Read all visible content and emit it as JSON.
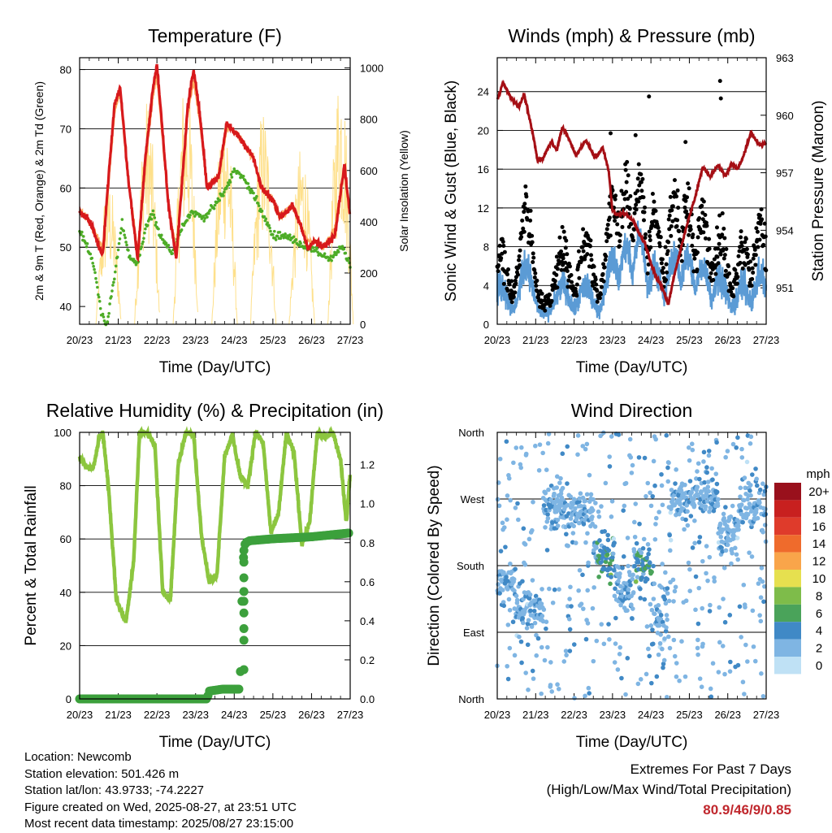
{
  "footer": {
    "location": "Location: Newcomb",
    "elevation": "Station elevation: 501.426 m",
    "latlon": "Station lat/lon: 43.9733; -74.2227",
    "created": "Figure created on Wed, 2025-08-27, at 23:51 UTC",
    "recent": "Most recent data timestamp: 2025/08/27 23:15:00"
  },
  "extremes": {
    "title": "Extremes For Past 7 Days",
    "subtitle": "(High/Low/Max Wind/Total Precipitation)",
    "values": "80.9/46/9/0.85"
  },
  "chart_data": [
    {
      "id": "temperature",
      "type": "line",
      "title": "Temperature (F)",
      "xlabel": "Time (Day/UTC)",
      "ylabel": "2m & 9m T (Red, Orange) & 2m Td (Green)",
      "y2label": "Solar Insolation (Yellow)",
      "x_ticks": [
        "20/23",
        "21/23",
        "22/23",
        "23/23",
        "24/23",
        "25/23",
        "26/23",
        "27/23"
      ],
      "xlim": [
        0,
        7
      ],
      "ylim": [
        37,
        82
      ],
      "y_ticks": [
        40,
        50,
        60,
        70,
        80
      ],
      "y2lim": [
        0,
        1040
      ],
      "y2_ticks": [
        0,
        200,
        400,
        600,
        800,
        1000
      ],
      "grid": true,
      "series": [
        {
          "key": "t2m",
          "color": "#d7191c",
          "axis": "left",
          "x": [
            0,
            0.2,
            0.35,
            0.5,
            0.6,
            0.75,
            0.9,
            1.05,
            1.25,
            1.5,
            1.7,
            1.9,
            2.0,
            2.1,
            2.3,
            2.5,
            2.8,
            2.95,
            3.1,
            3.3,
            3.6,
            3.8,
            3.95,
            4.2,
            4.5,
            4.7,
            5.0,
            5.2,
            5.5,
            5.7,
            5.9,
            6.1,
            6.3,
            6.6,
            6.85,
            7.0
          ],
          "y": [
            56,
            55,
            53,
            50,
            49,
            62,
            74,
            77,
            62,
            48,
            65,
            77,
            81,
            73,
            57,
            48,
            74,
            80,
            73,
            60,
            62,
            71,
            70,
            68,
            65,
            60,
            58,
            55,
            57,
            54,
            50,
            51,
            50,
            52,
            64,
            55
          ]
        },
        {
          "key": "t9m",
          "color": "#fdae61",
          "axis": "left",
          "x": [
            0,
            0.2,
            0.35,
            0.5,
            0.6,
            0.75,
            0.9,
            1.05,
            1.25,
            1.5,
            1.7,
            1.9,
            2.0,
            2.1,
            2.3,
            2.5,
            2.8,
            2.95,
            3.1,
            3.3,
            3.6,
            3.8,
            3.95,
            4.2,
            4.5,
            4.7,
            5.0,
            5.2,
            5.5,
            5.7,
            5.9,
            6.1,
            6.3,
            6.6,
            6.85,
            7.0
          ],
          "y": [
            56,
            55,
            53,
            51,
            50,
            61,
            73,
            76,
            62,
            49,
            64,
            76,
            79,
            72,
            57,
            49,
            73,
            78,
            72,
            60,
            62,
            70,
            70,
            68,
            65,
            60,
            58,
            55,
            57,
            54,
            51,
            51,
            50,
            53,
            63,
            55
          ]
        },
        {
          "key": "td2m",
          "color": "#4dac26",
          "axis": "left",
          "x": [
            0,
            0.2,
            0.4,
            0.55,
            0.7,
            0.9,
            1.1,
            1.3,
            1.5,
            1.7,
            1.9,
            2.0,
            2.2,
            2.4,
            2.6,
            2.9,
            3.2,
            3.5,
            3.8,
            4.0,
            4.2,
            4.5,
            4.7,
            5.0,
            5.3,
            5.6,
            5.9,
            6.2,
            6.5,
            6.8,
            7.0
          ],
          "y": [
            53,
            50,
            46,
            39,
            37,
            45,
            54,
            48,
            47,
            53,
            56,
            53,
            51,
            49,
            53,
            56,
            55,
            57,
            60,
            63,
            62,
            59,
            56,
            52,
            52,
            51,
            50,
            49,
            48,
            50,
            47
          ]
        },
        {
          "key": "solar",
          "color": "#fee08b",
          "axis": "right",
          "peaks_x": [
            0.75,
            1.75,
            2.75,
            3.75,
            4.75,
            5.75,
            6.75
          ],
          "peaks_y": [
            580,
            890,
            1000,
            900,
            860,
            710,
            1030
          ]
        }
      ]
    },
    {
      "id": "winds",
      "type": "scatter",
      "title": "Winds (mph) & Pressure (mb)",
      "xlabel": "Time (Day/UTC)",
      "ylabel": "Sonic Wind & Gust (Blue, Black)",
      "y2label": "Station Pressure (Maroon)",
      "x_ticks": [
        "20/23",
        "21/23",
        "22/23",
        "23/23",
        "24/23",
        "25/23",
        "26/23",
        "27/23"
      ],
      "xlim": [
        0,
        7
      ],
      "ylim": [
        0,
        27.5
      ],
      "y_ticks": [
        0,
        4,
        8,
        12,
        16,
        20,
        24
      ],
      "y2lim": [
        949.1,
        963
      ],
      "y2_ticks": [
        951,
        954,
        957,
        960,
        963
      ],
      "grid": true,
      "pressure": {
        "color": "#a50f15",
        "x": [
          0,
          0.15,
          0.3,
          0.55,
          0.7,
          0.8,
          0.95,
          1.05,
          1.2,
          1.4,
          1.55,
          1.7,
          1.9,
          2.05,
          2.3,
          2.55,
          2.75,
          2.9,
          3.0,
          3.1,
          3.3,
          3.55,
          3.7,
          3.85,
          4.0,
          4.15,
          4.3,
          4.45,
          4.6,
          4.75,
          4.95,
          5.15,
          5.35,
          5.55,
          5.75,
          5.95,
          6.1,
          6.25,
          6.4,
          6.6,
          6.8,
          7.0
        ],
        "y": [
          960.8,
          961.7,
          961.1,
          960.4,
          961.1,
          960.2,
          958.8,
          957.6,
          957.8,
          958.6,
          958.2,
          959.4,
          958.6,
          957.9,
          958.7,
          957.8,
          958.3,
          957.1,
          955.0,
          954.8,
          954.9,
          954.5,
          953.8,
          953.3,
          952.3,
          951.5,
          951.0,
          950.1,
          951.6,
          952.8,
          954.4,
          955.7,
          957.3,
          956.8,
          957.4,
          956.8,
          957.5,
          957.2,
          957.8,
          959.1,
          958.5,
          958.5
        ]
      },
      "wind_bursts": [
        [
          0.1,
          3,
          5
        ],
        [
          0.75,
          5,
          10
        ],
        [
          1.7,
          3,
          6
        ],
        [
          2.3,
          3,
          7
        ],
        [
          3.0,
          6,
          11
        ],
        [
          3.35,
          7,
          12
        ],
        [
          3.7,
          8,
          13
        ],
        [
          4.1,
          5,
          9
        ],
        [
          4.6,
          6,
          11
        ],
        [
          4.95,
          6,
          10
        ],
        [
          5.35,
          5,
          9
        ],
        [
          5.8,
          4,
          7
        ],
        [
          6.4,
          3,
          6
        ],
        [
          6.85,
          4,
          8
        ]
      ],
      "outlier_gusts": [
        [
          3.95,
          23.5
        ],
        [
          5.8,
          25.1
        ],
        [
          5.82,
          23.3
        ],
        [
          4.9,
          18.8
        ],
        [
          3.6,
          19.5
        ],
        [
          2.95,
          19.7
        ]
      ]
    },
    {
      "id": "rh",
      "type": "line",
      "title": "Relative Humidity (%) & Precipitation (in)",
      "xlabel": "Time (Day/UTC)",
      "ylabel": "Percent & Total Rainfall",
      "x_ticks": [
        "20/23",
        "21/23",
        "22/23",
        "23/23",
        "24/23",
        "25/23",
        "26/23",
        "27/23"
      ],
      "xlim": [
        0,
        7
      ],
      "ylim": [
        0,
        100
      ],
      "y_ticks": [
        0,
        20,
        40,
        60,
        80,
        100
      ],
      "y2lim": [
        0,
        1.365
      ],
      "y2_ticks": [
        "0.0",
        "0.2",
        "0.4",
        "0.6",
        "0.8",
        "1.0",
        "1.2"
      ],
      "grid": true,
      "series": [
        {
          "key": "rh",
          "color": "#8cc63f",
          "x": [
            0,
            0.2,
            0.35,
            0.5,
            0.6,
            0.75,
            0.95,
            1.2,
            1.4,
            1.55,
            1.75,
            1.95,
            2.15,
            2.35,
            2.55,
            2.75,
            2.95,
            3.15,
            3.35,
            3.55,
            3.75,
            3.95,
            4.15,
            4.35,
            4.55,
            4.75,
            4.95,
            5.15,
            5.35,
            5.55,
            5.75,
            5.95,
            6.15,
            6.35,
            6.55,
            6.75,
            6.9,
            7.0
          ],
          "y": [
            90,
            87,
            86,
            98,
            100,
            79,
            37,
            29,
            52,
            100,
            100,
            95,
            40,
            37,
            88,
            100,
            99,
            62,
            44,
            46,
            91,
            99,
            84,
            80,
            100,
            96,
            62,
            70,
            100,
            92,
            58,
            66,
            100,
            98,
            100,
            90,
            66,
            85
          ]
        },
        {
          "key": "precip",
          "color": "#3ca03c",
          "axis": "right",
          "x": [
            0,
            3.3,
            3.35,
            3.7,
            4.15,
            4.2,
            4.25,
            4.3,
            4.4,
            5.0,
            6.0,
            7.0
          ],
          "y": [
            0,
            0,
            0.04,
            0.05,
            0.05,
            0.5,
            0.78,
            0.8,
            0.81,
            0.82,
            0.83,
            0.85
          ]
        }
      ]
    },
    {
      "id": "winddir",
      "type": "scatter",
      "title": "Wind Direction",
      "xlabel": "Time (Day/UTC)",
      "ylabel": "Direction (Colored By Speed)",
      "x_ticks": [
        "20/23",
        "21/23",
        "22/23",
        "23/23",
        "24/23",
        "25/23",
        "26/23",
        "27/23"
      ],
      "xlim": [
        0,
        7
      ],
      "y_categories": [
        "North",
        "East",
        "South",
        "West",
        "North"
      ],
      "ylim": [
        0,
        360
      ],
      "grid": true,
      "legend": {
        "title": "mph",
        "labels": [
          "20+",
          "18",
          "16",
          "14",
          "12",
          "10",
          "8",
          "6",
          "4",
          "2",
          "0"
        ],
        "colors": [
          "#99101c",
          "#c8201f",
          "#df3b2b",
          "#ef6b2c",
          "#f9a54a",
          "#e6e04f",
          "#7ebc4a",
          "#4aa35a",
          "#4089c6",
          "#7fb5e3",
          "#bfe1f5"
        ]
      },
      "clusters": [
        [
          0.1,
          160,
          20
        ],
        [
          0.8,
          120,
          30
        ],
        [
          1.6,
          260,
          35
        ],
        [
          2.2,
          255,
          25
        ],
        [
          2.8,
          195,
          25
        ],
        [
          3.3,
          150,
          40
        ],
        [
          3.8,
          180,
          30
        ],
        [
          4.2,
          110,
          60
        ],
        [
          4.8,
          270,
          30
        ],
        [
          5.5,
          280,
          30
        ],
        [
          6.0,
          230,
          40
        ],
        [
          6.6,
          260,
          35
        ]
      ]
    }
  ]
}
